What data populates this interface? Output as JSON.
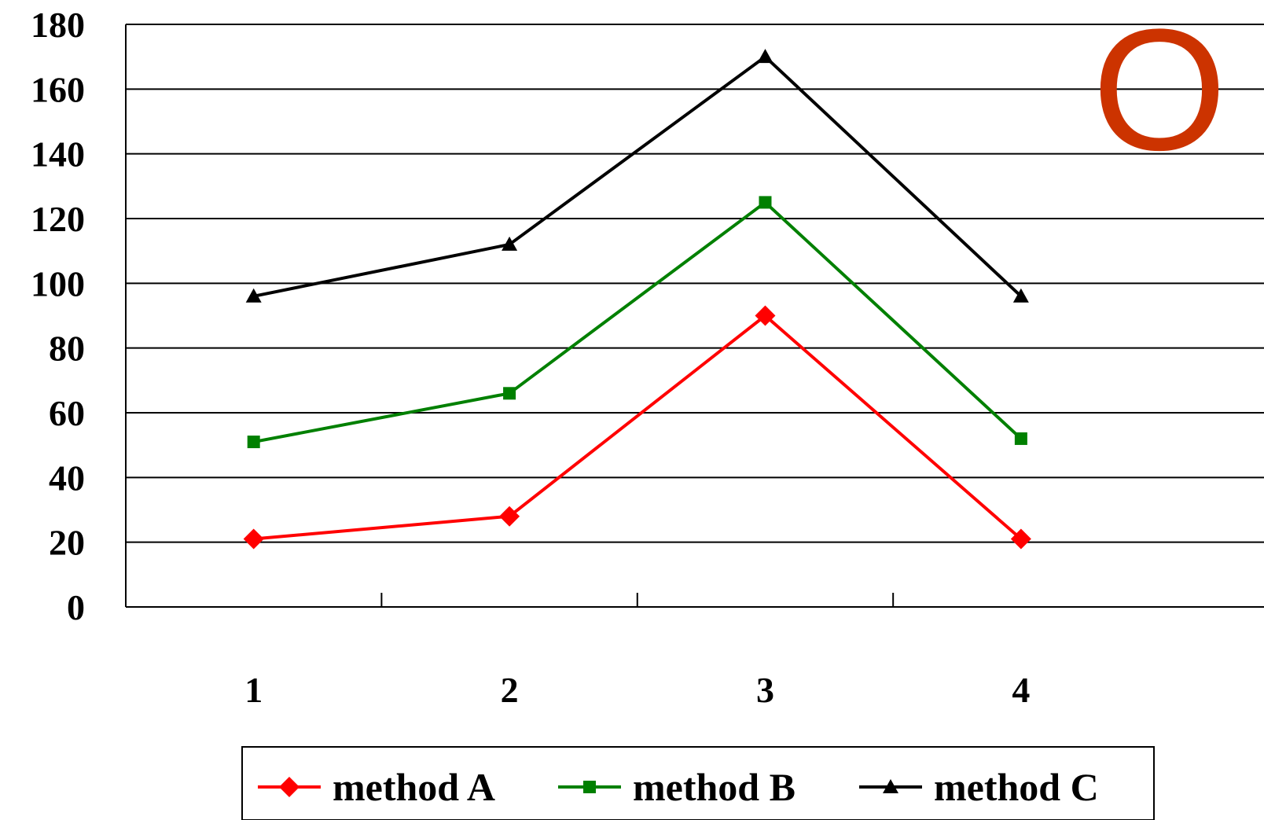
{
  "chart_data": {
    "type": "line",
    "categories": [
      "1",
      "2",
      "3",
      "4"
    ],
    "series": [
      {
        "name": "method A",
        "values": [
          21,
          28,
          90,
          21
        ],
        "color": "#ff0000",
        "marker": "diamond"
      },
      {
        "name": "method B",
        "values": [
          51,
          66,
          125,
          52
        ],
        "color": "#008000",
        "marker": "square"
      },
      {
        "name": "method C",
        "values": [
          96,
          112,
          170,
          96
        ],
        "color": "#000000",
        "marker": "triangle"
      }
    ],
    "ylim": [
      0,
      180
    ],
    "yticks": [
      "0",
      "20",
      "40",
      "60",
      "80",
      "100",
      "120",
      "140",
      "160",
      "180"
    ],
    "grid": "horizontal",
    "legend_position": "bottom",
    "title": "",
    "xlabel": "",
    "ylabel": ""
  },
  "corner_mark": {
    "text": "O",
    "color": "#cc3300"
  }
}
